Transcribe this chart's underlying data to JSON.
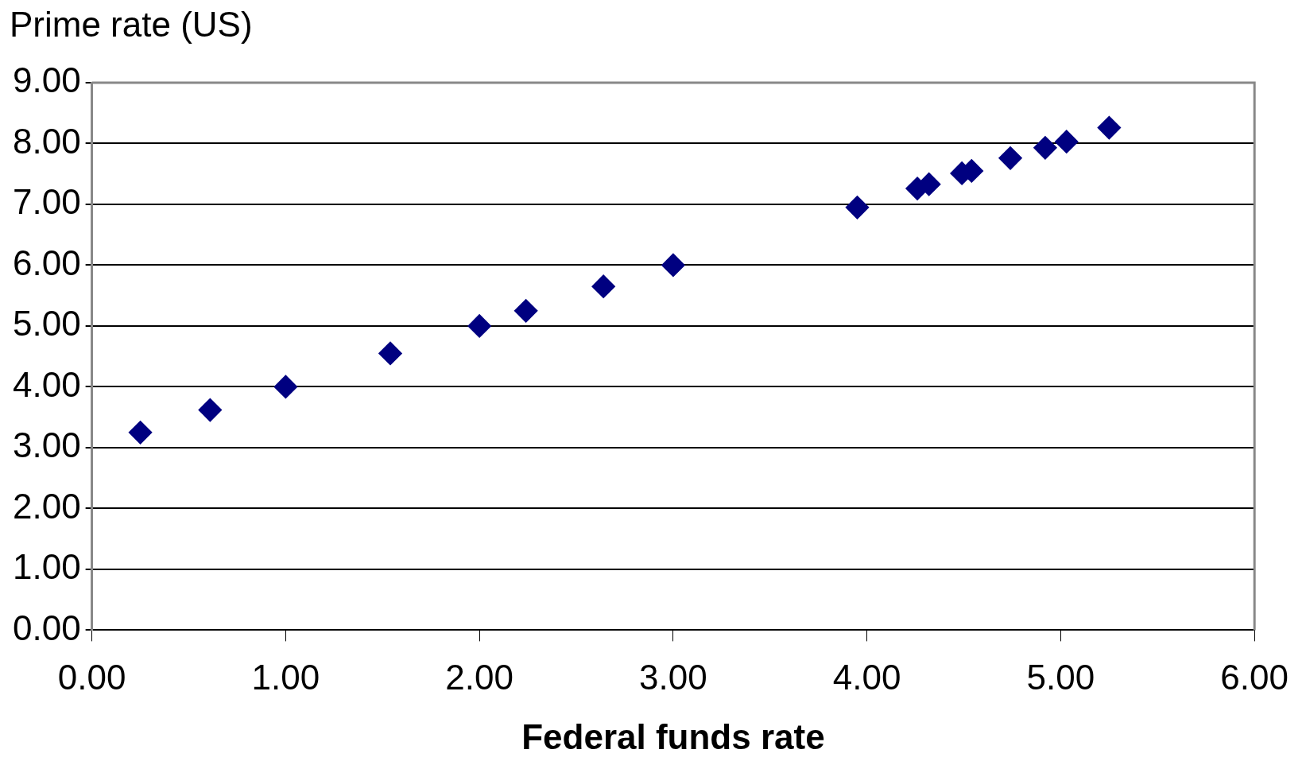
{
  "chart_data": {
    "type": "scatter",
    "xlabel": "Federal funds rate",
    "ylabel": "Prime rate (US)",
    "x": [
      0.25,
      0.61,
      1.0,
      1.54,
      2.0,
      2.24,
      2.64,
      3.0,
      3.95,
      4.26,
      4.32,
      4.49,
      4.54,
      4.74,
      4.92,
      5.03,
      5.25
    ],
    "series": [
      {
        "color": "#000080",
        "values": [
          3.25,
          3.62,
          4.0,
          4.55,
          5.0,
          5.25,
          5.65,
          6.0,
          6.95,
          7.26,
          7.33,
          7.51,
          7.55,
          7.76,
          7.93,
          8.03,
          8.26
        ]
      }
    ],
    "xlim": [
      0,
      6
    ],
    "xticks": [
      {
        "value": 0,
        "label": "0.00"
      },
      {
        "value": 1,
        "label": "1.00"
      },
      {
        "value": 2,
        "label": "2.00"
      },
      {
        "value": 3,
        "label": "3.00"
      },
      {
        "value": 4,
        "label": "4.00"
      },
      {
        "value": 5,
        "label": "5.00"
      },
      {
        "value": 6,
        "label": "6.00"
      }
    ],
    "ylim": [
      0,
      9
    ],
    "yticks": [
      {
        "value": 0,
        "label": "0.00"
      },
      {
        "value": 1,
        "label": "1.00"
      },
      {
        "value": 2,
        "label": "2.00"
      },
      {
        "value": 3,
        "label": "3.00"
      },
      {
        "value": 4,
        "label": "4.00"
      },
      {
        "value": 5,
        "label": "5.00"
      },
      {
        "value": 6,
        "label": "6.00"
      },
      {
        "value": 7,
        "label": "7.00"
      },
      {
        "value": 8,
        "label": "8.00"
      },
      {
        "value": 9,
        "label": "9.00"
      }
    ],
    "grid": "y",
    "legend": false,
    "marker": "diamond"
  }
}
